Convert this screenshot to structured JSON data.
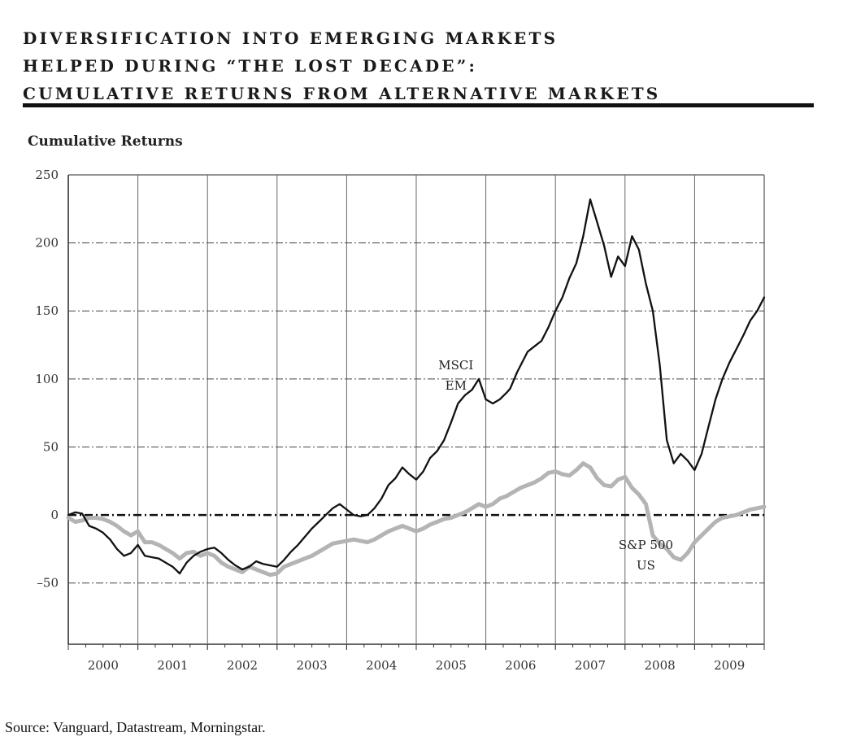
{
  "title_lines": [
    "DIVERSIFICATION INTO EMERGING MARKETS",
    "HELPED DURING “THE LOST DECADE”:",
    "CUMULATIVE RETURNS FROM ALTERNATIVE MARKETS"
  ],
  "source": "Source: Vanguard, Datastream, Morningstar.",
  "colors": {
    "msci": "#111111",
    "sp500": "#b4b4b4",
    "grid": "#333333"
  },
  "chart_data": {
    "type": "line",
    "ylabel": "Cumulative Returns",
    "xlabel": "",
    "ylim": [
      -95,
      250
    ],
    "xlim": [
      2000.0,
      2010.0
    ],
    "yticks": [
      250,
      200,
      150,
      100,
      50,
      0,
      -50
    ],
    "ytick_labels": [
      "250",
      "200",
      "150",
      "100",
      "50",
      "0",
      "–50"
    ],
    "xtick_labels": [
      "2000",
      "2001",
      "2002",
      "2003",
      "2004",
      "2005",
      "2006",
      "2007",
      "2008",
      "2009"
    ],
    "grid": true,
    "annotations": [
      {
        "lines": [
          "MSCI",
          "EM"
        ],
        "series": "MSCI EM",
        "x": 2005.57,
        "y": 107
      },
      {
        "lines": [
          "S&P 500",
          "US"
        ],
        "series": "S&P 500 US",
        "x": 2008.3,
        "y": -25
      }
    ],
    "series": [
      {
        "name": "MSCI EM",
        "x": [
          2000.0,
          2000.1,
          2000.2,
          2000.3,
          2000.4,
          2000.5,
          2000.6,
          2000.7,
          2000.8,
          2000.9,
          2001.0,
          2001.1,
          2001.2,
          2001.3,
          2001.4,
          2001.5,
          2001.6,
          2001.7,
          2001.8,
          2001.9,
          2002.0,
          2002.1,
          2002.2,
          2002.3,
          2002.4,
          2002.5,
          2002.6,
          2002.7,
          2002.8,
          2002.9,
          2003.0,
          2003.1,
          2003.2,
          2003.3,
          2003.4,
          2003.5,
          2003.6,
          2003.7,
          2003.8,
          2003.9,
          2004.0,
          2004.1,
          2004.2,
          2004.3,
          2004.4,
          2004.5,
          2004.6,
          2004.7,
          2004.8,
          2004.9,
          2005.0,
          2005.1,
          2005.2,
          2005.3,
          2005.4,
          2005.5,
          2005.6,
          2005.7,
          2005.8,
          2005.9,
          2006.0,
          2006.1,
          2006.2,
          2006.3,
          2006.35,
          2006.45,
          2006.6,
          2006.7,
          2006.8,
          2006.9,
          2007.0,
          2007.1,
          2007.2,
          2007.3,
          2007.4,
          2007.5,
          2007.6,
          2007.7,
          2007.8,
          2007.9,
          2008.0,
          2008.1,
          2008.2,
          2008.3,
          2008.4,
          2008.5,
          2008.6,
          2008.7,
          2008.8,
          2008.9,
          2009.0,
          2009.1,
          2009.2,
          2009.3,
          2009.4,
          2009.5,
          2009.6,
          2009.7,
          2009.8,
          2009.9,
          2010.0
        ],
        "values": [
          0,
          2,
          1,
          -8,
          -10,
          -13,
          -18,
          -25,
          -30,
          -28,
          -22,
          -30,
          -31,
          -32,
          -35,
          -38,
          -43,
          -35,
          -30,
          -27,
          -25,
          -24,
          -28,
          -33,
          -37,
          -40,
          -38,
          -34,
          -36,
          -37,
          -38,
          -33,
          -27,
          -22,
          -16,
          -10,
          -5,
          0,
          5,
          8,
          4,
          0,
          -1,
          0,
          5,
          12,
          22,
          27,
          35,
          30,
          26,
          32,
          42,
          47,
          55,
          68,
          82,
          88,
          92,
          100,
          85,
          82,
          85,
          90,
          93,
          105,
          120,
          124,
          128,
          138,
          150,
          160,
          174,
          185,
          205,
          232,
          215,
          198,
          175,
          190,
          183,
          205,
          195,
          170,
          150,
          110,
          55,
          38,
          45,
          40,
          33,
          45,
          65,
          85,
          100,
          112,
          122,
          132,
          143,
          150,
          160
        ]
      },
      {
        "name": "S&P 500 US",
        "x": [
          2000.0,
          2000.1,
          2000.2,
          2000.3,
          2000.4,
          2000.5,
          2000.6,
          2000.7,
          2000.8,
          2000.9,
          2001.0,
          2001.1,
          2001.2,
          2001.3,
          2001.4,
          2001.5,
          2001.6,
          2001.7,
          2001.8,
          2001.9,
          2002.0,
          2002.1,
          2002.2,
          2002.3,
          2002.4,
          2002.5,
          2002.6,
          2002.7,
          2002.8,
          2002.9,
          2003.0,
          2003.1,
          2003.2,
          2003.3,
          2003.4,
          2003.5,
          2003.6,
          2003.7,
          2003.8,
          2003.9,
          2004.0,
          2004.1,
          2004.2,
          2004.3,
          2004.4,
          2004.5,
          2004.6,
          2004.7,
          2004.8,
          2004.9,
          2005.0,
          2005.1,
          2005.2,
          2005.3,
          2005.4,
          2005.5,
          2005.6,
          2005.7,
          2005.8,
          2005.9,
          2006.0,
          2006.1,
          2006.2,
          2006.3,
          2006.4,
          2006.5,
          2006.6,
          2006.7,
          2006.8,
          2006.9,
          2007.0,
          2007.1,
          2007.2,
          2007.3,
          2007.4,
          2007.5,
          2007.6,
          2007.7,
          2007.8,
          2007.9,
          2008.0,
          2008.1,
          2008.2,
          2008.3,
          2008.4,
          2008.5,
          2008.6,
          2008.7,
          2008.8,
          2008.9,
          2009.0,
          2009.1,
          2009.2,
          2009.3,
          2009.4,
          2009.5,
          2009.6,
          2009.7,
          2009.8,
          2009.9,
          2010.0
        ],
        "values": [
          -2,
          -5,
          -4,
          -2,
          -2,
          -3,
          -5,
          -8,
          -12,
          -15,
          -12,
          -20,
          -20,
          -22,
          -25,
          -28,
          -32,
          -28,
          -27,
          -30,
          -28,
          -30,
          -35,
          -38,
          -40,
          -42,
          -38,
          -40,
          -42,
          -44,
          -43,
          -38,
          -36,
          -34,
          -32,
          -30,
          -27,
          -24,
          -21,
          -20,
          -19,
          -18,
          -19,
          -20,
          -18,
          -15,
          -12,
          -10,
          -8,
          -10,
          -12,
          -10,
          -7,
          -5,
          -3,
          -2,
          0,
          2,
          5,
          8,
          6,
          8,
          12,
          14,
          17,
          20,
          22,
          24,
          27,
          31,
          32,
          30,
          29,
          33,
          38,
          35,
          27,
          22,
          21,
          26,
          28,
          20,
          15,
          8,
          -15,
          -21,
          -25,
          -31,
          -33,
          -28,
          -20,
          -15,
          -10,
          -5,
          -2,
          -1,
          0,
          2,
          4,
          5,
          6
        ]
      }
    ]
  }
}
